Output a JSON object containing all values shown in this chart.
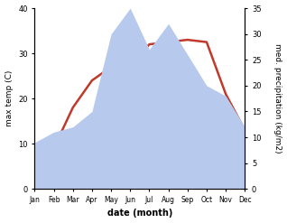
{
  "months": [
    "Jan",
    "Feb",
    "Mar",
    "Apr",
    "May",
    "Jun",
    "Jul",
    "Aug",
    "Sep",
    "Oct",
    "Nov",
    "Dec"
  ],
  "temperature": [
    3.0,
    9.0,
    18.0,
    24.0,
    27.0,
    27.0,
    32.0,
    32.5,
    33.0,
    32.5,
    21.0,
    13.0
  ],
  "precipitation": [
    9.0,
    11.0,
    12.0,
    15.0,
    30.0,
    35.0,
    27.0,
    32.0,
    26.0,
    20.0,
    18.0,
    12.0
  ],
  "temp_color": "#c0392b",
  "precip_color": "#b8c9ee",
  "ylim_temp": [
    0,
    40
  ],
  "ylim_precip": [
    0,
    35
  ],
  "yticks_temp": [
    0,
    10,
    20,
    30,
    40
  ],
  "yticks_precip": [
    0,
    5,
    10,
    15,
    20,
    25,
    30,
    35
  ],
  "xlabel": "date (month)",
  "ylabel_left": "max temp (C)",
  "ylabel_right": "med. precipitation (kg/m2)",
  "background_color": "#ffffff"
}
